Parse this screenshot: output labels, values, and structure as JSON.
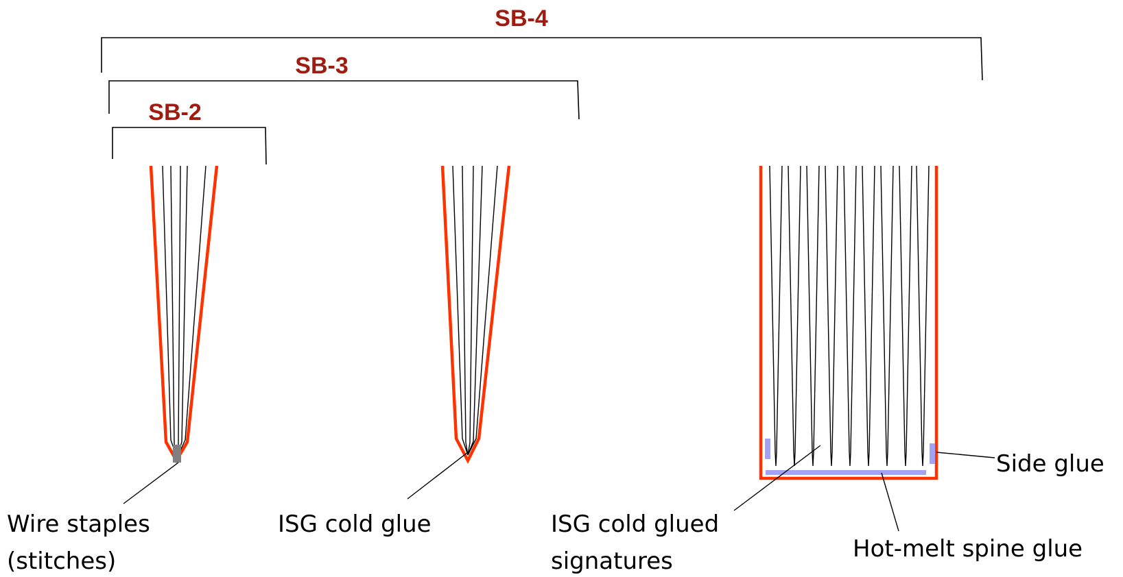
{
  "brackets": {
    "sb4": "SB-4",
    "sb3": "SB-3",
    "sb2": "SB-2"
  },
  "callouts": {
    "wire_staples_line1": "Wire staples",
    "wire_staples_line2": "(stitches)",
    "isg_cold_glue": "ISG cold glue",
    "isg_signatures_line1": "ISG cold glued",
    "isg_signatures_line2": "signatures",
    "side_glue": "Side glue",
    "hot_melt": "Hot-melt spine glue"
  },
  "colors": {
    "bracket_label": "#a01c10",
    "cover": "#ff3300",
    "glue": "#a3a3f5",
    "staple": "#808080",
    "lines": "#000000"
  }
}
